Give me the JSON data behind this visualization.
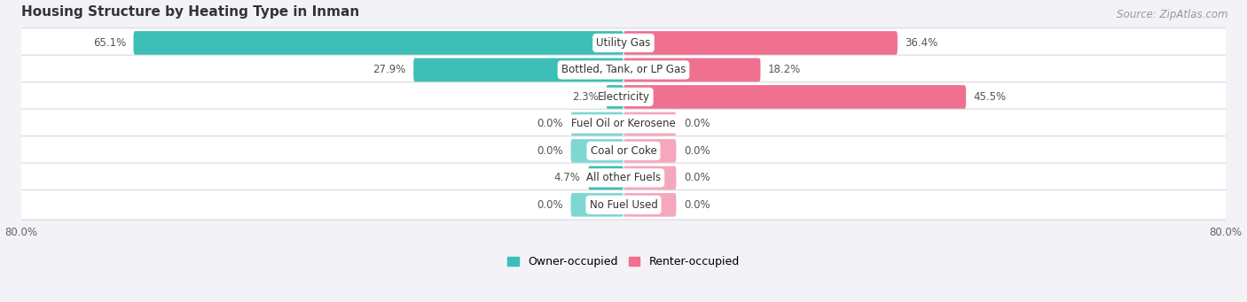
{
  "title": "Housing Structure by Heating Type in Inman",
  "source": "Source: ZipAtlas.com",
  "categories": [
    "Utility Gas",
    "Bottled, Tank, or LP Gas",
    "Electricity",
    "Fuel Oil or Kerosene",
    "Coal or Coke",
    "All other Fuels",
    "No Fuel Used"
  ],
  "owner_values": [
    65.1,
    27.9,
    2.3,
    0.0,
    0.0,
    4.7,
    0.0
  ],
  "renter_values": [
    36.4,
    18.2,
    45.5,
    0.0,
    0.0,
    0.0,
    0.0
  ],
  "owner_color": "#3DBFB8",
  "renter_color": "#F07090",
  "owner_label": "Owner-occupied",
  "renter_label": "Renter-occupied",
  "stub_owner_color": "#7DD8D4",
  "stub_renter_color": "#F5A8BB",
  "xlim": 80.0,
  "stub_size": 7.0,
  "background_color": "#f2f2f7",
  "row_bg_color": "#ffffff",
  "title_fontsize": 11,
  "source_fontsize": 8.5,
  "value_fontsize": 8.5,
  "cat_fontsize": 8.5,
  "axis_fontsize": 8.5,
  "legend_fontsize": 9
}
